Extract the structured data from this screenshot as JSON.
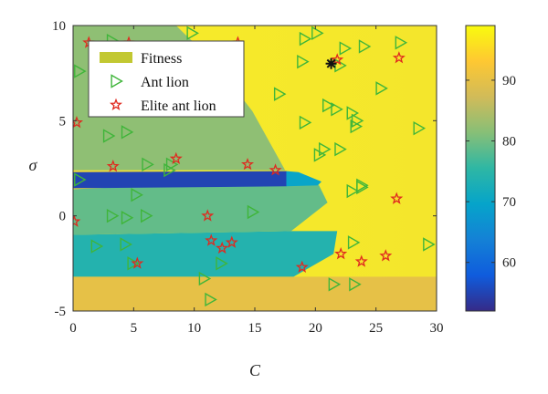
{
  "chart_data": {
    "type": "heatmap",
    "title": "",
    "xlabel": "C",
    "ylabel": "σ",
    "xlim": [
      0,
      30
    ],
    "ylim": [
      -5,
      10
    ],
    "xticks": [
      0,
      5,
      10,
      15,
      20,
      25,
      30
    ],
    "yticks": [
      -5,
      0,
      5,
      10
    ],
    "colorbar": {
      "min": 52,
      "max": 99,
      "ticks": [
        60,
        70,
        80,
        90
      ]
    },
    "colormap": [
      "#352a87",
      "#0f5cdd",
      "#1481d6",
      "#06a4ca",
      "#2eb7a4",
      "#87bf77",
      "#d1bb59",
      "#fec832",
      "#f9fb0e"
    ],
    "legend": {
      "position": "top-left",
      "entries": [
        {
          "label": "Fitness",
          "marker": "patch",
          "color": "#c2c832"
        },
        {
          "label": "Ant lion",
          "marker": "triangle",
          "color": "#3fb53a"
        },
        {
          "label": "Elite ant lion",
          "marker": "star",
          "color": "#e0291f"
        }
      ]
    },
    "fitness_regions": [
      {
        "name": "lower-band",
        "polygon": [
          [
            0,
            -5
          ],
          [
            30,
            -5
          ],
          [
            30,
            -3.2
          ],
          [
            0,
            -3.2
          ]
        ],
        "value": 90
      },
      {
        "name": "left-green",
        "polygon": [
          [
            0,
            10
          ],
          [
            8.5,
            10
          ],
          [
            9.3,
            9.5
          ],
          [
            11.5,
            8.2
          ],
          [
            14.8,
            5.5
          ],
          [
            17.5,
            2.4
          ],
          [
            0,
            2.4
          ]
        ],
        "value": 82
      },
      {
        "name": "cyan-band",
        "polygon": [
          [
            0,
            -3.2
          ],
          [
            18.2,
            -3.2
          ],
          [
            21.5,
            -2
          ],
          [
            21.8,
            -0.8
          ],
          [
            18,
            -0.8
          ],
          [
            0,
            -1
          ]
        ],
        "value": 74
      },
      {
        "name": "teal-band",
        "polygon": [
          [
            0,
            -1
          ],
          [
            18,
            -0.8
          ],
          [
            21,
            0.7
          ],
          [
            20.3,
            1.6
          ],
          [
            17.8,
            1.9
          ],
          [
            0,
            1.4
          ]
        ],
        "value": 79
      },
      {
        "name": "dark-stripe",
        "polygon": [
          [
            0,
            1.45
          ],
          [
            17.6,
            1.55
          ],
          [
            18.2,
            1.75
          ],
          [
            17.6,
            2.35
          ],
          [
            0,
            2.3
          ]
        ],
        "value": 55
      },
      {
        "name": "stripe-tip",
        "polygon": [
          [
            17.6,
            1.55
          ],
          [
            20.2,
            1.6
          ],
          [
            20.5,
            1.8
          ],
          [
            18.6,
            2.3
          ],
          [
            17.6,
            2.35
          ]
        ],
        "value": 70
      }
    ],
    "series": [
      {
        "name": "Ant lion",
        "marker": "triangle",
        "color": "#3fb53a",
        "points": [
          [
            3.2,
            9.2
          ],
          [
            9.8,
            9.6
          ],
          [
            19.1,
            9.3
          ],
          [
            20.1,
            9.6
          ],
          [
            22.4,
            8.8
          ],
          [
            24,
            8.9
          ],
          [
            27,
            9.1
          ],
          [
            18.9,
            8.1
          ],
          [
            22,
            7.9
          ],
          [
            17,
            6.4
          ],
          [
            25.4,
            6.7
          ],
          [
            0.5,
            7.6
          ],
          [
            3.5,
            8.2
          ],
          [
            21,
            5.8
          ],
          [
            21.7,
            5.6
          ],
          [
            23,
            5.4
          ],
          [
            23.4,
            5
          ],
          [
            19.1,
            4.9
          ],
          [
            23.3,
            4.7
          ],
          [
            28.5,
            4.6
          ],
          [
            2.9,
            4.2
          ],
          [
            4.4,
            4.4
          ],
          [
            22,
            3.5
          ],
          [
            20.7,
            3.5
          ],
          [
            20.3,
            3.2
          ],
          [
            0.5,
            1.9
          ],
          [
            6.1,
            2.7
          ],
          [
            8.1,
            2.7
          ],
          [
            7.9,
            2.4
          ],
          [
            23.8,
            1.6
          ],
          [
            23,
            1.3
          ],
          [
            5.2,
            1.1
          ],
          [
            14.8,
            0.2
          ],
          [
            3.2,
            0
          ],
          [
            4.4,
            -0.1
          ],
          [
            6,
            0
          ],
          [
            1.9,
            -1.6
          ],
          [
            4.3,
            -1.5
          ],
          [
            23.1,
            -1.4
          ],
          [
            29.3,
            -1.5
          ],
          [
            4.9,
            -2.5
          ],
          [
            12.2,
            -2.5
          ],
          [
            10.8,
            -3.3
          ],
          [
            21.5,
            -3.6
          ],
          [
            23.2,
            -3.6
          ],
          [
            11.3,
            -4.4
          ],
          [
            23.8,
            1.5
          ]
        ]
      },
      {
        "name": "Elite ant lion",
        "marker": "star",
        "color": "#e0291f",
        "points": [
          [
            1.3,
            9.1
          ],
          [
            4.6,
            9.1
          ],
          [
            13.6,
            9.1
          ],
          [
            26.9,
            8.3
          ],
          [
            21.8,
            8.2
          ],
          [
            0.3,
            4.9
          ],
          [
            3.3,
            2.6
          ],
          [
            8.5,
            3
          ],
          [
            14.4,
            2.7
          ],
          [
            16.7,
            2.4
          ],
          [
            26.7,
            0.9
          ],
          [
            11.1,
            0
          ],
          [
            0.1,
            -0.3
          ],
          [
            11.4,
            -1.3
          ],
          [
            12.3,
            -1.7
          ],
          [
            13.1,
            -1.4
          ],
          [
            5.3,
            -2.5
          ],
          [
            18.9,
            -2.7
          ],
          [
            22.1,
            -2
          ],
          [
            23.8,
            -2.4
          ],
          [
            25.8,
            -2.1
          ]
        ]
      }
    ],
    "best_point": {
      "x": 21.3,
      "y": 8,
      "marker": "asterisk",
      "color": "#111111"
    }
  }
}
